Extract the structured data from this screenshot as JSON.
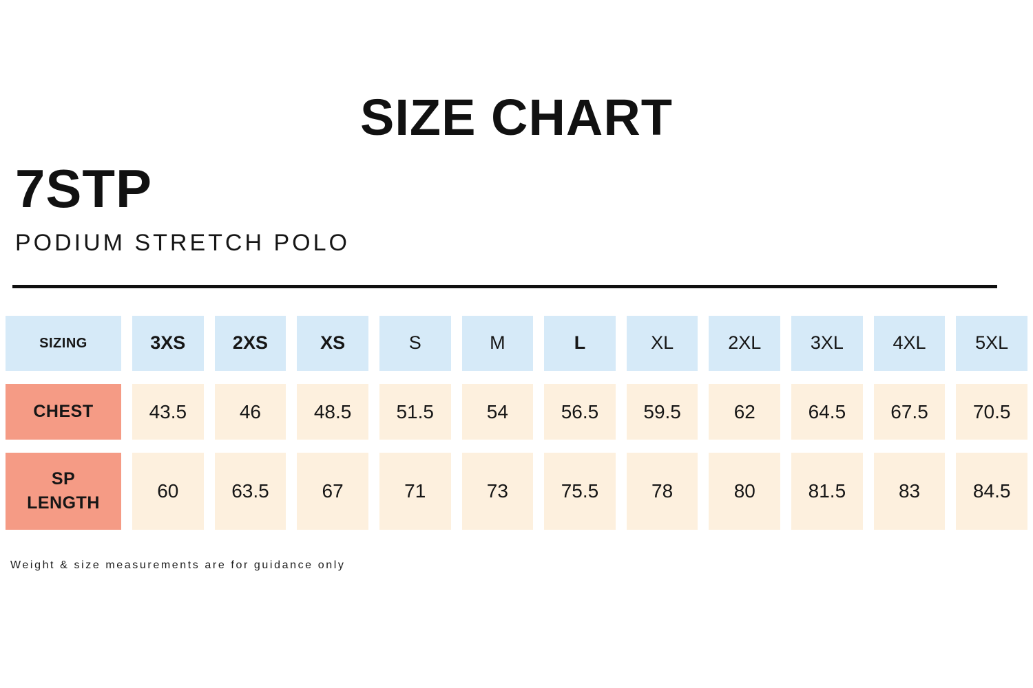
{
  "header": {
    "title": "SIZE CHART",
    "product_code": "7STP",
    "product_name": "PODIUM STRETCH POLO"
  },
  "footnote": "Weight & size measurements are for guidance only",
  "colors": {
    "column_header_bg": "#d6eaf8",
    "row_label_bg": "#f59b85",
    "value_cell_bg": "#fdf0de",
    "text": "#161616"
  },
  "chart_data": {
    "type": "table",
    "title": "SIZE CHART",
    "columns": [
      {
        "label": "SIZING",
        "bold": true
      },
      {
        "label": "3XS",
        "bold": true
      },
      {
        "label": "2XS",
        "bold": true
      },
      {
        "label": "XS",
        "bold": true
      },
      {
        "label": "S",
        "bold": false
      },
      {
        "label": "M",
        "bold": false
      },
      {
        "label": "L",
        "bold": true
      },
      {
        "label": "XL",
        "bold": false
      },
      {
        "label": "2XL",
        "bold": false
      },
      {
        "label": "3XL",
        "bold": false
      },
      {
        "label": "4XL",
        "bold": false
      },
      {
        "label": "5XL",
        "bold": false
      }
    ],
    "rows": [
      {
        "label": "CHEST",
        "values": [
          "43.5",
          "46",
          "48.5",
          "51.5",
          "54",
          "56.5",
          "59.5",
          "62",
          "64.5",
          "67.5",
          "70.5"
        ]
      },
      {
        "label": "SP LENGTH",
        "values": [
          "60",
          "63.5",
          "67",
          "71",
          "73",
          "75.5",
          "78",
          "80",
          "81.5",
          "83",
          "84.5"
        ]
      }
    ]
  }
}
